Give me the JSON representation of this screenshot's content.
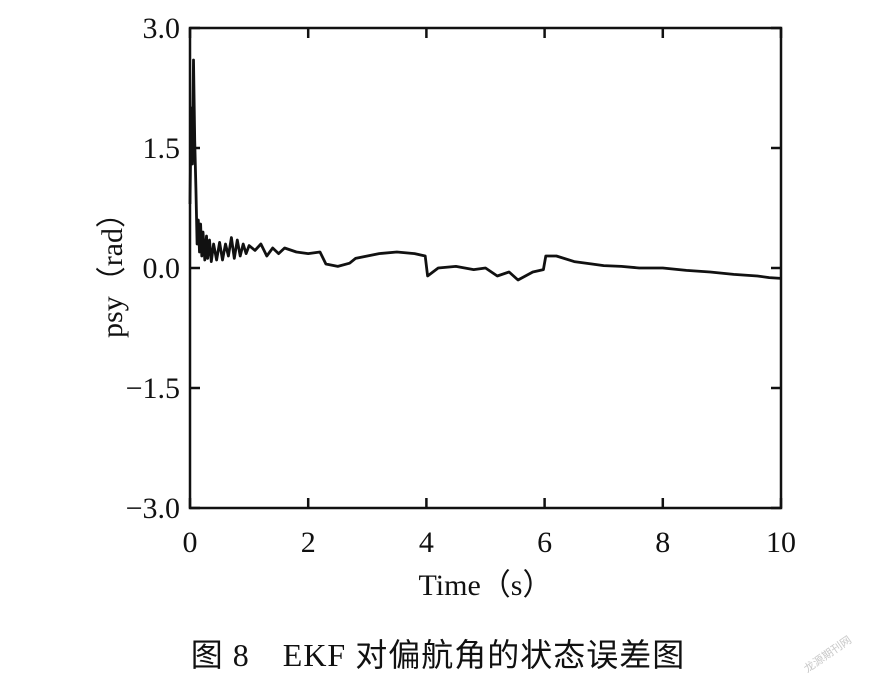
{
  "chart_data": {
    "type": "line",
    "xlabel": "Time（s）",
    "ylabel": "psy（rad）",
    "xlim": [
      0,
      10
    ],
    "ylim": [
      -3.0,
      3.0
    ],
    "xticks": [
      0,
      2,
      4,
      6,
      8,
      10
    ],
    "xtick_labels": [
      "0",
      "2",
      "4",
      "6",
      "8",
      "10"
    ],
    "yticks": [
      3.0,
      1.5,
      0.0,
      -1.5,
      -3.0
    ],
    "ytick_labels": [
      "3.0",
      "1.5",
      "0.0",
      "−1.5",
      "−3.0"
    ],
    "grid": false,
    "line_color": "#111111",
    "series": [
      {
        "x": [
          0.0,
          0.02,
          0.04,
          0.06,
          0.08,
          0.1,
          0.12,
          0.14,
          0.16,
          0.18,
          0.2,
          0.22,
          0.25,
          0.28,
          0.3,
          0.33,
          0.36,
          0.4,
          0.45,
          0.5,
          0.55,
          0.6,
          0.65,
          0.7,
          0.75,
          0.8,
          0.85,
          0.9,
          0.95,
          1.0,
          1.1,
          1.2,
          1.3,
          1.4,
          1.5,
          1.6,
          1.8,
          2.0,
          2.2,
          2.3,
          2.5,
          2.7,
          2.8,
          3.0,
          3.2,
          3.5,
          3.8,
          3.98,
          4.02,
          4.2,
          4.5,
          4.8,
          5.0,
          5.2,
          5.4,
          5.55,
          5.8,
          5.98,
          6.02,
          6.2,
          6.5,
          6.8,
          7.0,
          7.3,
          7.6,
          8.0,
          8.4,
          8.8,
          9.2,
          9.6,
          9.8,
          10.0
        ],
        "y": [
          0.8,
          2.0,
          1.3,
          2.6,
          1.6,
          1.0,
          0.3,
          0.6,
          0.2,
          0.55,
          0.15,
          0.45,
          0.1,
          0.4,
          0.12,
          0.35,
          0.08,
          0.3,
          0.1,
          0.32,
          0.1,
          0.3,
          0.15,
          0.38,
          0.12,
          0.35,
          0.15,
          0.3,
          0.18,
          0.28,
          0.22,
          0.3,
          0.15,
          0.25,
          0.18,
          0.25,
          0.2,
          0.18,
          0.2,
          0.05,
          0.02,
          0.06,
          0.12,
          0.15,
          0.18,
          0.2,
          0.18,
          0.15,
          -0.1,
          0.0,
          0.02,
          -0.02,
          0.0,
          -0.1,
          -0.05,
          -0.15,
          -0.05,
          -0.02,
          0.15,
          0.15,
          0.08,
          0.05,
          0.03,
          0.02,
          0.0,
          0.0,
          -0.03,
          -0.05,
          -0.08,
          -0.1,
          -0.12,
          -0.13
        ]
      }
    ]
  },
  "caption": "图 8　EKF 对偏航角的状态误差图"
}
